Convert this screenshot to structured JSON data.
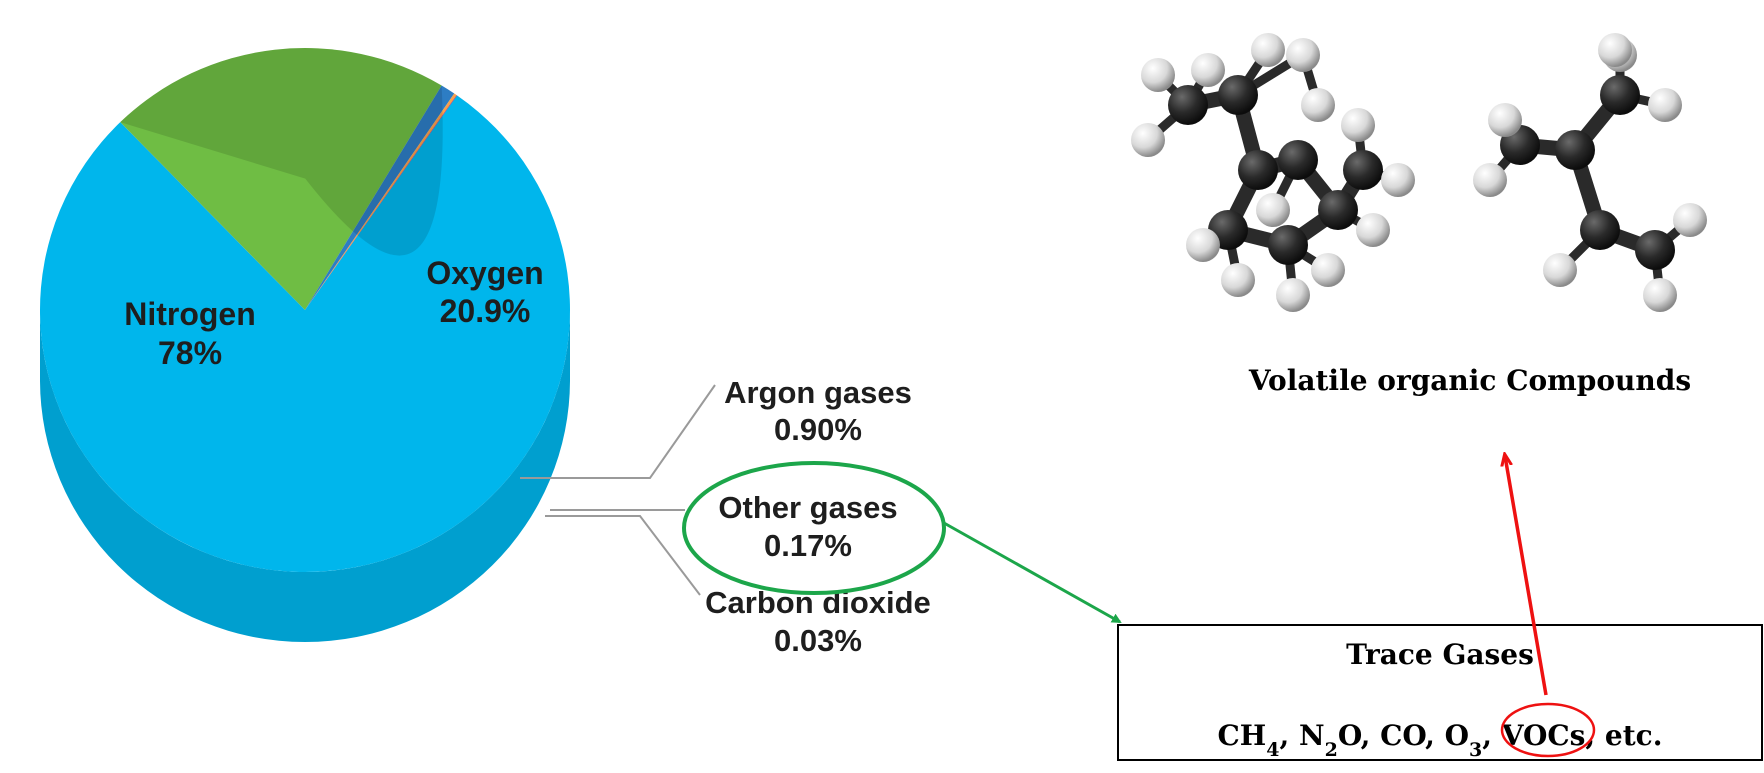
{
  "chart_data": {
    "type": "pie",
    "style": "3d",
    "slices": [
      {
        "name": "Nitrogen",
        "value_label": "78%",
        "value": 78,
        "color": "#00b6ec",
        "side_color": "#009fcf"
      },
      {
        "name": "Oxygen",
        "value_label": "20.9%",
        "value": 20.9,
        "color": "#6fbd44",
        "side_color": "#5a9c37"
      },
      {
        "name": "Argon gases",
        "value_label": "0.90%",
        "value": 0.9,
        "color": "#2d7dc4",
        "side_color": "#0b4f8c"
      },
      {
        "name": "Other gases",
        "value_label": "0.17%",
        "value": 0.17,
        "color": "#f9a14a",
        "side_color": "#e67a16"
      },
      {
        "name": "Carbon dioxide",
        "value_label": "0.03%",
        "value": 0.03,
        "color": "#c2185b",
        "side_color": "#9c1046"
      }
    ]
  },
  "trace_box": {
    "title": "Trace Gases",
    "items": [
      {
        "base": "CH",
        "sub": "4"
      },
      {
        "base": "N",
        "sub": "2",
        "suffix": "O"
      },
      {
        "base": "CO",
        "sub": ""
      },
      {
        "base": "O",
        "sub": "3"
      },
      {
        "base": "VOCs",
        "sub": "",
        "highlighted": true
      }
    ],
    "trailing": "etc."
  },
  "voc_caption": "Volatile organic Compounds",
  "colors": {
    "green_arrow": "#1ca64a",
    "red_arrow": "#ee1111",
    "molecule_bond": "#2a2a2a",
    "hydrogen": "#ececec"
  },
  "icons": {
    "molecule_1": "molecule-icon",
    "molecule_2": "molecule-icon"
  }
}
